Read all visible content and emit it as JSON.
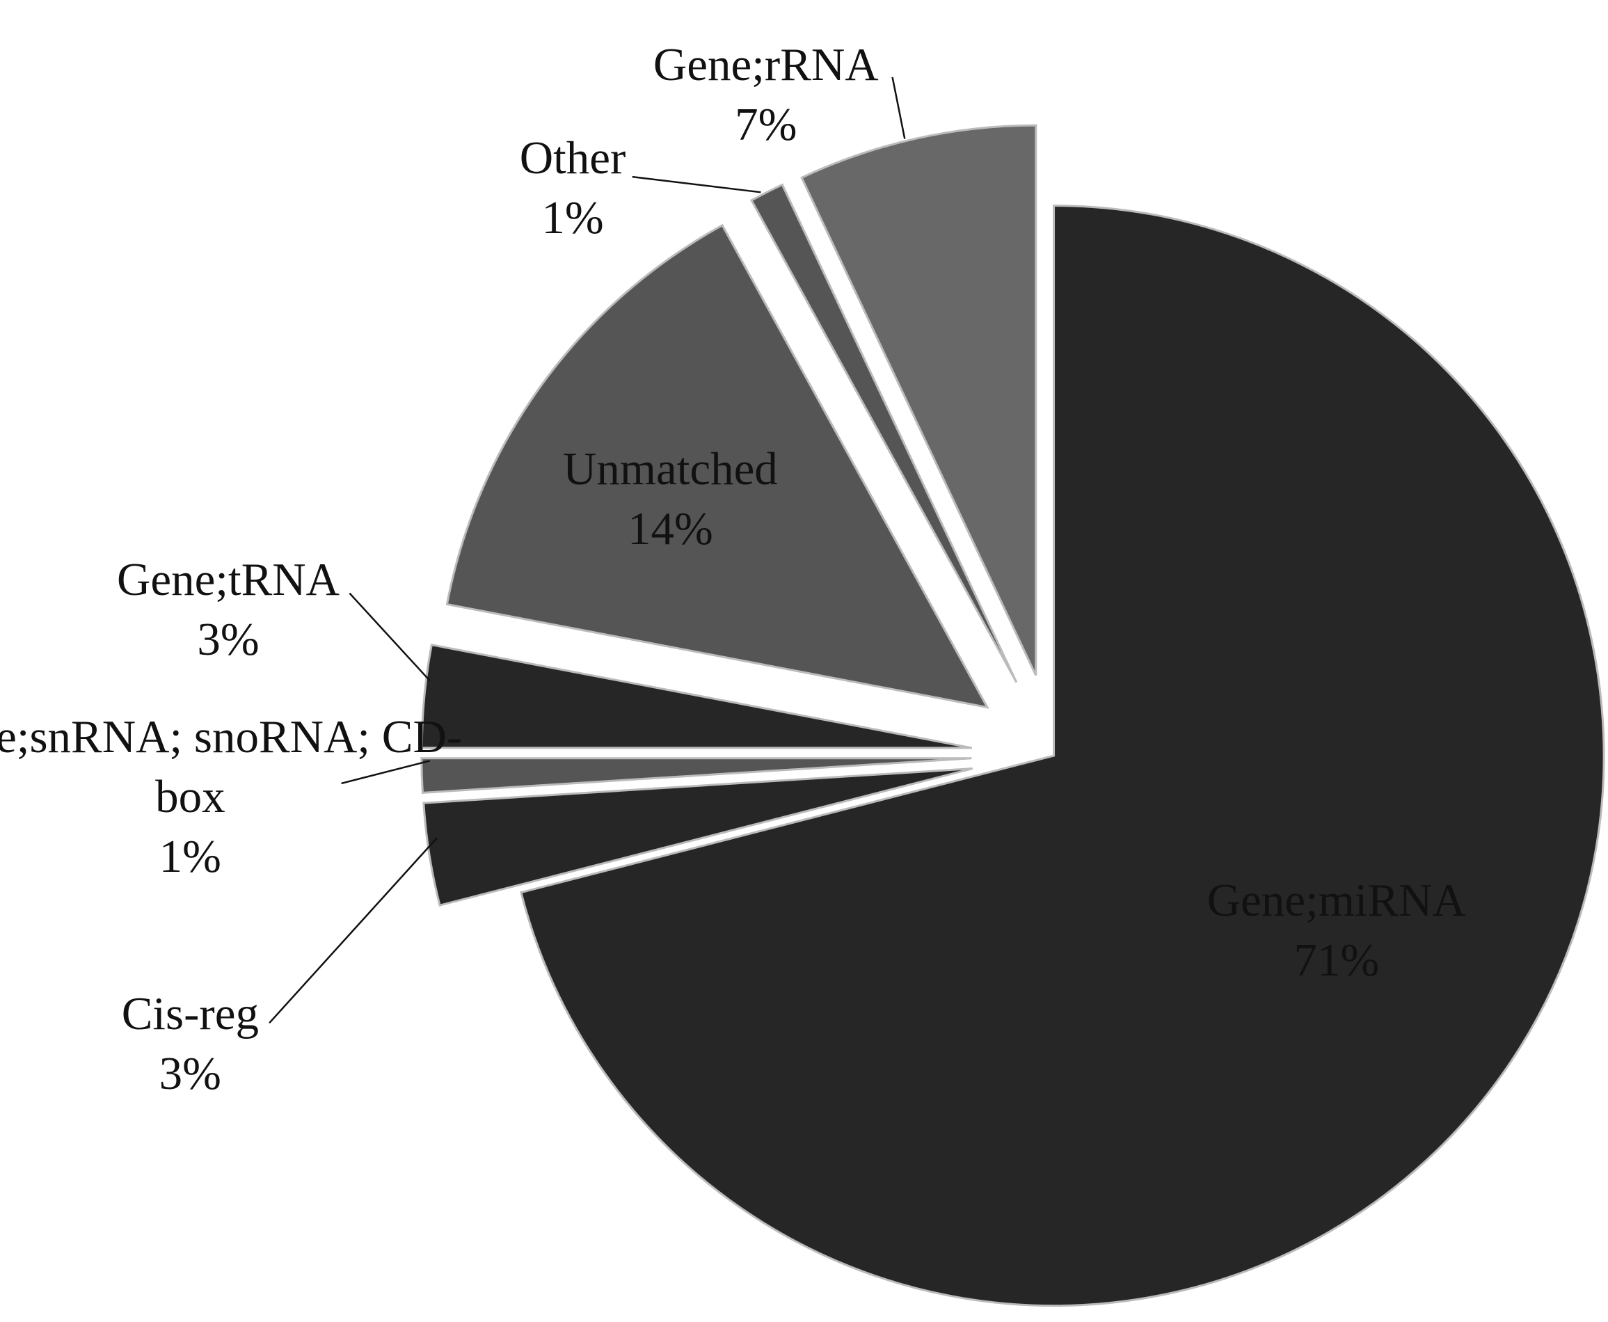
{
  "chart_data": {
    "type": "pie",
    "categories": [
      "Gene;miRNA",
      "Cis-reg",
      "Gene;snRNA; snoRNA; CD-box",
      "Gene;tRNA",
      "Unmatched",
      "Other",
      "Gene;rRNA"
    ],
    "values": [
      71,
      3,
      1,
      3,
      14,
      1,
      7
    ],
    "value_labels": [
      "71%",
      "3%",
      "1%",
      "3%",
      "14%",
      "1%",
      "7%"
    ],
    "colors": [
      "#262626",
      "#262626",
      "#555555",
      "#262626",
      "#555555",
      "#555555",
      "#686868"
    ]
  }
}
